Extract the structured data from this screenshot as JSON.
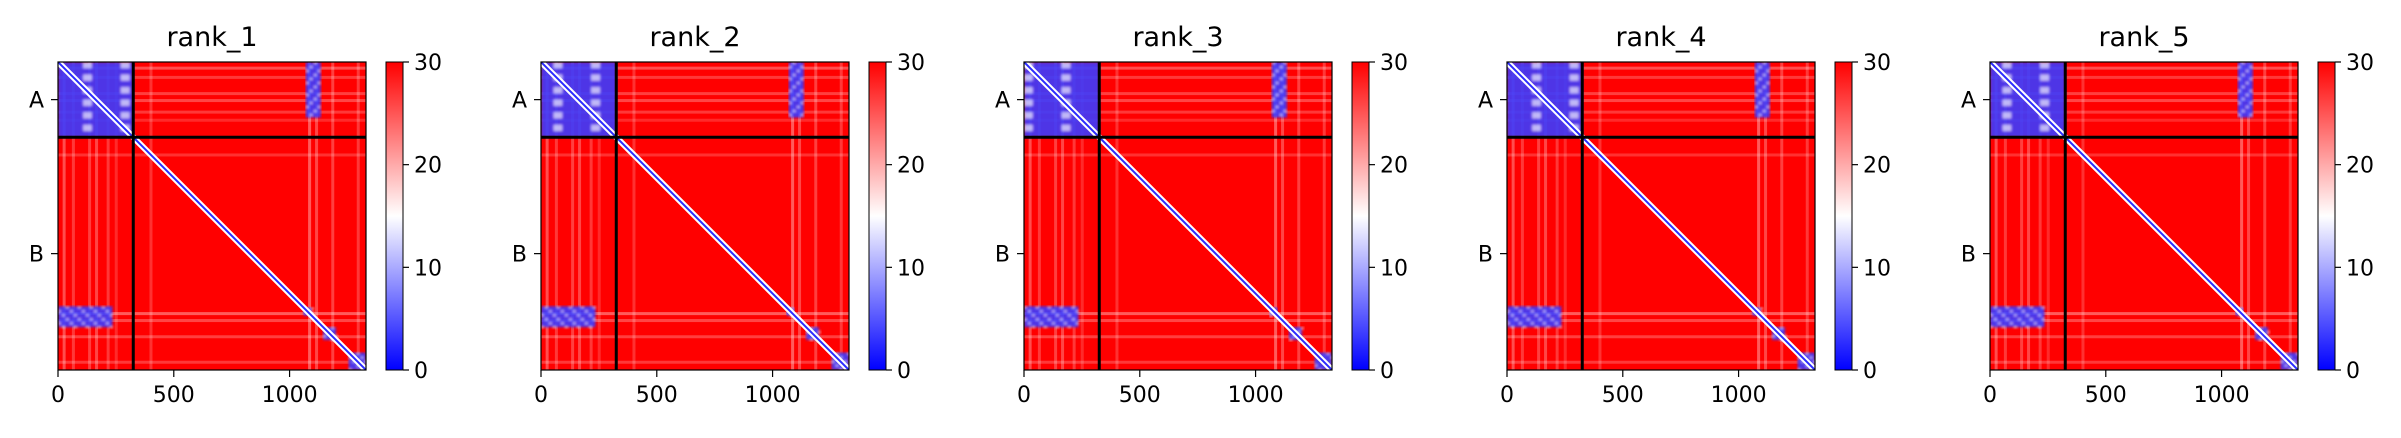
{
  "chart_data": {
    "type": "heatmap",
    "colormap": {
      "low": "#0000ff",
      "mid": "#ffffff",
      "high": "#ff0000"
    },
    "colorbar": {
      "range": [
        0,
        30
      ],
      "ticks": [
        "0",
        "10",
        "20",
        "30"
      ]
    },
    "x_ticks": [
      0,
      500,
      1000
    ],
    "x_tick_labels": [
      "0",
      "500",
      "1000"
    ],
    "axis_range": [
      0,
      1330
    ],
    "chain_boundary": 325,
    "chain_labels": [
      "A",
      "B"
    ],
    "band_positions": [
      20,
      60,
      130,
      160,
      210,
      245,
      395,
      1080,
      1110,
      1180,
      1290
    ],
    "band_strengths": [
      0.55,
      0.4,
      0.45,
      0.5,
      0.4,
      0.3,
      0.35,
      0.65,
      0.5,
      0.45,
      0.4
    ],
    "blue_blocks": [
      {
        "x0": 0,
        "x1": 325,
        "y0": 0,
        "y1": 325
      },
      {
        "x0": 1070,
        "x1": 1135,
        "y0": 0,
        "y1": 240
      },
      {
        "x0": 0,
        "x1": 235,
        "y0": 1055,
        "y1": 1145
      },
      {
        "x0": 1060,
        "x1": 1095,
        "y0": 1060,
        "y1": 1095
      },
      {
        "x0": 1145,
        "x1": 1200,
        "y0": 1145,
        "y1": 1200
      },
      {
        "x0": 1255,
        "x1": 1330,
        "y0": 1255,
        "y1": 1330
      }
    ],
    "panels": [
      {
        "title": "rank_1"
      },
      {
        "title": "rank_2"
      },
      {
        "title": "rank_3"
      },
      {
        "title": "rank_4"
      },
      {
        "title": "rank_5"
      }
    ]
  }
}
